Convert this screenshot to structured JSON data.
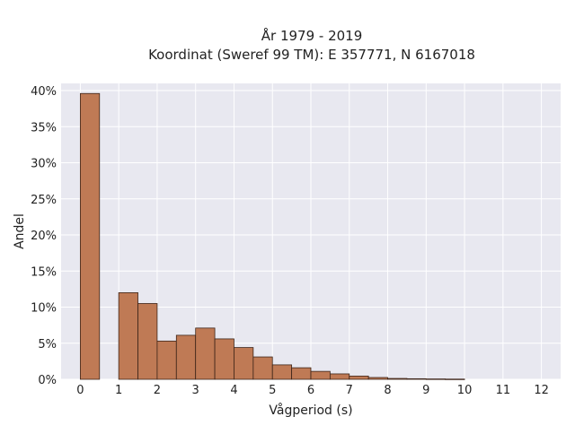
{
  "chart_data": {
    "type": "bar",
    "title_line1": "År 1979 - 2019",
    "title_line2": "Koordinat (Sweref 99 TM): E 357771, N 6167018",
    "xlabel": "Vågperiod (s)",
    "ylabel": "Andel",
    "xlim": [
      -0.5,
      12.5
    ],
    "ylim": [
      0,
      41
    ],
    "x_ticks": [
      0,
      1,
      2,
      3,
      4,
      5,
      6,
      7,
      8,
      9,
      10,
      11,
      12
    ],
    "y_ticks": [
      0,
      5,
      10,
      15,
      20,
      25,
      30,
      35,
      40
    ],
    "y_tick_labels": [
      "0%",
      "5%",
      "10%",
      "15%",
      "20%",
      "25%",
      "30%",
      "35%",
      "40%"
    ],
    "bin_width": 0.5,
    "bins": [
      {
        "start": 0.0,
        "value": 39.6
      },
      {
        "start": 0.5,
        "value": 0.0
      },
      {
        "start": 1.0,
        "value": 12.0
      },
      {
        "start": 1.5,
        "value": 10.5
      },
      {
        "start": 2.0,
        "value": 5.3
      },
      {
        "start": 2.5,
        "value": 6.1
      },
      {
        "start": 3.0,
        "value": 7.1
      },
      {
        "start": 3.5,
        "value": 5.6
      },
      {
        "start": 4.0,
        "value": 4.4
      },
      {
        "start": 4.5,
        "value": 3.1
      },
      {
        "start": 5.0,
        "value": 2.0
      },
      {
        "start": 5.5,
        "value": 1.6
      },
      {
        "start": 6.0,
        "value": 1.1
      },
      {
        "start": 6.5,
        "value": 0.75
      },
      {
        "start": 7.0,
        "value": 0.45
      },
      {
        "start": 7.5,
        "value": 0.25
      },
      {
        "start": 8.0,
        "value": 0.12
      },
      {
        "start": 8.5,
        "value": 0.08
      },
      {
        "start": 9.0,
        "value": 0.05
      },
      {
        "start": 9.5,
        "value": 0.03
      }
    ],
    "grid": true,
    "colors": {
      "bar_fill": "#bf7a55",
      "bar_edge": "#3d2418",
      "plot_background": "#e8e8f0",
      "grid": "#ffffff"
    }
  }
}
